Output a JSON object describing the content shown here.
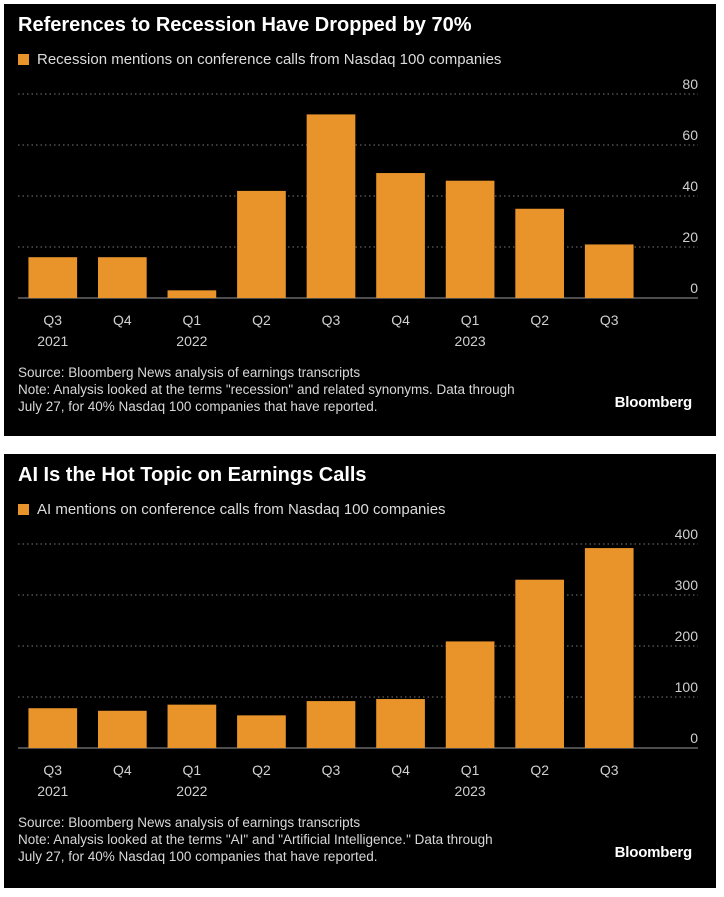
{
  "colors": {
    "background": "#000000",
    "bar": "#e8942b",
    "text": "#ffffff",
    "grid": "#777777"
  },
  "brand": "Bloomberg",
  "chart_data": [
    {
      "type": "bar",
      "title": "References to Recession Have Dropped by 70%",
      "legend_position": "top-left",
      "series": [
        {
          "name": "Recession mentions on conference calls from Nasdaq 100 companies",
          "values": [
            16,
            16,
            3,
            42,
            72,
            49,
            46,
            35,
            21
          ]
        }
      ],
      "categories": [
        "Q3 2021",
        "Q4",
        "Q1 2022",
        "Q2",
        "Q3",
        "Q4",
        "Q1 2023",
        "Q2",
        "Q3"
      ],
      "x_tick_labels": [
        {
          "line1": "Q3",
          "line2": "2021"
        },
        {
          "line1": "Q4",
          "line2": ""
        },
        {
          "line1": "Q1",
          "line2": "2022"
        },
        {
          "line1": "Q2",
          "line2": ""
        },
        {
          "line1": "Q3",
          "line2": ""
        },
        {
          "line1": "Q4",
          "line2": ""
        },
        {
          "line1": "Q1",
          "line2": "2023"
        },
        {
          "line1": "Q2",
          "line2": ""
        },
        {
          "line1": "Q3",
          "line2": ""
        }
      ],
      "y_ticks": [
        0,
        20,
        40,
        60,
        80
      ],
      "ylim": [
        0,
        80
      ],
      "y_axis_side": "right",
      "grid": true,
      "source_lines": [
        "Source: Bloomberg News analysis of earnings transcripts",
        "Note: Analysis looked at the terms \"recession\" and related synonyms. Data through",
        "July 27, for 40% Nasdaq 100 companies that have reported."
      ]
    },
    {
      "type": "bar",
      "title": "AI Is the Hot Topic on Earnings Calls",
      "legend_position": "top-left",
      "series": [
        {
          "name": "AI mentions on conference calls from Nasdaq 100 companies",
          "values": [
            78,
            73,
            85,
            64,
            92,
            96,
            209,
            330,
            392
          ]
        }
      ],
      "categories": [
        "Q3 2021",
        "Q4",
        "Q1 2022",
        "Q2",
        "Q3",
        "Q4",
        "Q1 2023",
        "Q2",
        "Q3"
      ],
      "x_tick_labels": [
        {
          "line1": "Q3",
          "line2": "2021"
        },
        {
          "line1": "Q4",
          "line2": ""
        },
        {
          "line1": "Q1",
          "line2": "2022"
        },
        {
          "line1": "Q2",
          "line2": ""
        },
        {
          "line1": "Q3",
          "line2": ""
        },
        {
          "line1": "Q4",
          "line2": ""
        },
        {
          "line1": "Q1",
          "line2": "2023"
        },
        {
          "line1": "Q2",
          "line2": ""
        },
        {
          "line1": "Q3",
          "line2": ""
        }
      ],
      "y_ticks": [
        0,
        100,
        200,
        300,
        400
      ],
      "ylim": [
        0,
        400
      ],
      "y_axis_side": "right",
      "grid": true,
      "source_lines": [
        "Source: Bloomberg News analysis of earnings transcripts",
        "Note: Analysis looked at the terms \"AI\" and \"Artificial Intelligence.\" Data through",
        "July 27, for 40% Nasdaq 100 companies that have reported."
      ]
    }
  ]
}
